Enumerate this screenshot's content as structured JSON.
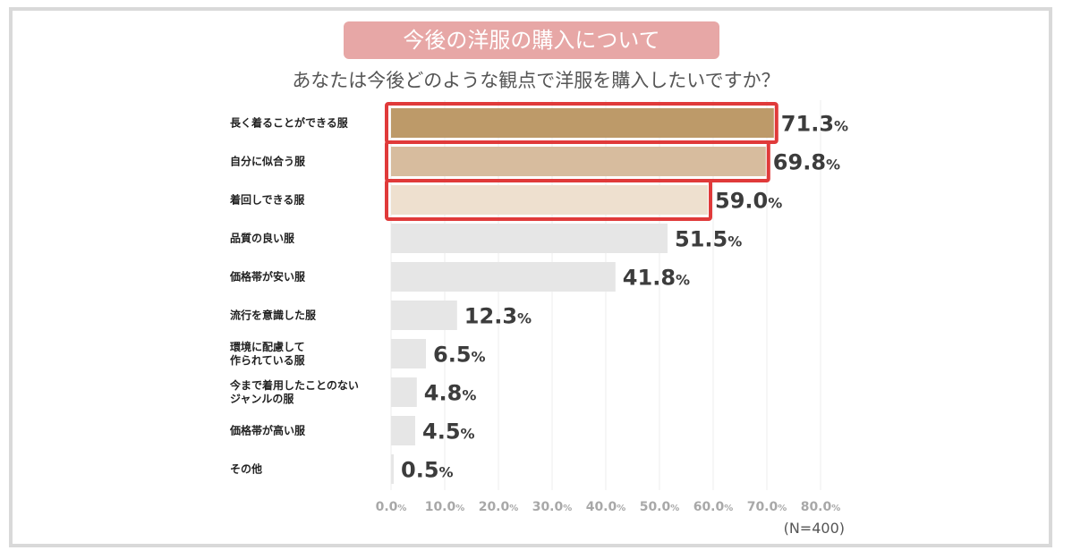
{
  "chart_data": {
    "type": "bar",
    "orientation": "horizontal",
    "title": "今後の洋服の購入について",
    "subtitle": "あなたは今後どのような観点で洋服を購入したいですか？",
    "categories": [
      "長く着ることができる服",
      "自分に似合う服",
      "着回しできる服",
      "品質の良い服",
      "価格帯が安い服",
      "流行を意識した服",
      "環境に配慮して\n作られている服",
      "今まで着用したことのない\nジャンルの服",
      "価格帯が高い服",
      "その他"
    ],
    "values": [
      71.3,
      69.8,
      59.0,
      51.5,
      41.8,
      12.3,
      6.5,
      4.8,
      4.5,
      0.5
    ],
    "value_labels": [
      "71.3",
      "69.8",
      "59.0",
      "51.5",
      "41.8",
      "12.3",
      "6.5",
      "4.8",
      "4.5",
      "0.5"
    ],
    "value_unit": "%",
    "highlighted": [
      0,
      1,
      2
    ],
    "bar_colors": [
      "#bd9a69",
      "#d7bc9e",
      "#eee0cf",
      "#e6e6e6",
      "#e6e6e6",
      "#e6e6e6",
      "#e6e6e6",
      "#e6e6e6",
      "#e6e6e6",
      "#e6e6e6"
    ],
    "highlight_color": "#e03a3a",
    "xticks": [
      0,
      10,
      20,
      30,
      40,
      50,
      60,
      70,
      80
    ],
    "xtick_labels": [
      "0.0",
      "10.0",
      "20.0",
      "30.0",
      "40.0",
      "50.0",
      "60.0",
      "70.0",
      "80.0"
    ],
    "xlim": [
      0,
      80
    ],
    "note": "(N=400)"
  }
}
